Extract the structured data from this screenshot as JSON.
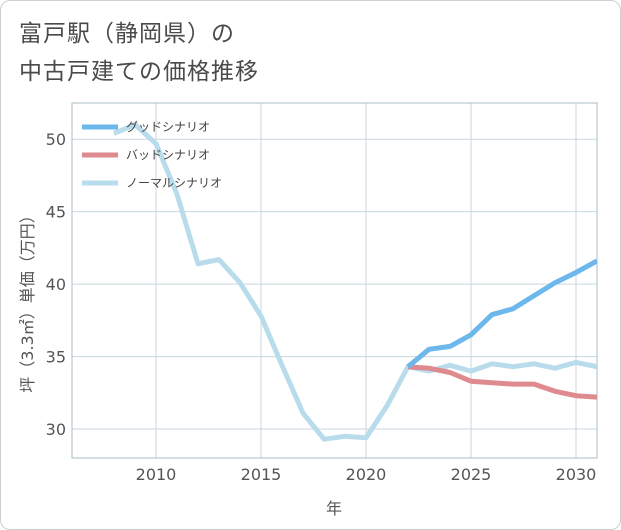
{
  "title_lines": [
    "富戸駅（静岡県）の",
    "中古戸建ての価格推移"
  ],
  "chart_data": {
    "type": "line",
    "title": "富戸駅（静岡県）の中古戸建ての価格推移",
    "xlabel": "年",
    "ylabel": "坪（3.3㎡）単価（万円）",
    "xlim": [
      2006,
      2031
    ],
    "ylim": [
      28,
      52.5
    ],
    "xticks": [
      2010,
      2015,
      2020,
      2025,
      2030
    ],
    "yticks": [
      30,
      35,
      40,
      45,
      50
    ],
    "grid": true,
    "legend_position": "top-left",
    "series": [
      {
        "name": "グッドシナリオ",
        "color": "#6cb8ec",
        "x": [
          2022,
          2023,
          2024,
          2025,
          2026,
          2027,
          2028,
          2029,
          2030,
          2031
        ],
        "y": [
          34.3,
          35.5,
          35.7,
          36.5,
          37.9,
          38.3,
          39.2,
          40.1,
          40.8,
          41.6
        ]
      },
      {
        "name": "バッドシナリオ",
        "color": "#df8a8e",
        "x": [
          2022,
          2023,
          2024,
          2025,
          2026,
          2027,
          2028,
          2029,
          2030,
          2031
        ],
        "y": [
          34.3,
          34.2,
          33.9,
          33.3,
          33.2,
          33.1,
          33.1,
          32.6,
          32.3,
          32.2
        ]
      },
      {
        "name": "ノーマルシナリオ",
        "color": "#b8dcec",
        "x": [
          2008,
          2009,
          2010,
          2011,
          2012,
          2013,
          2014,
          2015,
          2016,
          2017,
          2018,
          2019,
          2020,
          2021,
          2022,
          2023,
          2024,
          2025,
          2026,
          2027,
          2028,
          2029,
          2030,
          2031
        ],
        "y": [
          50.4,
          51.0,
          49.7,
          46.2,
          41.4,
          41.7,
          40.1,
          37.8,
          34.4,
          31.1,
          29.3,
          29.5,
          29.4,
          31.6,
          34.3,
          34.0,
          34.4,
          34.0,
          34.5,
          34.3,
          34.5,
          34.2,
          34.6,
          34.3
        ]
      }
    ]
  }
}
